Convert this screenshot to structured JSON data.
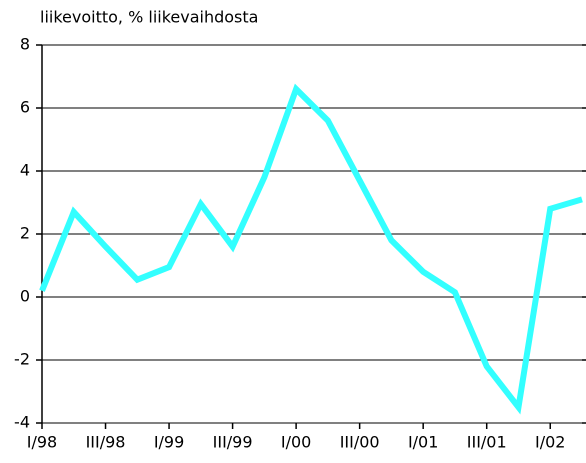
{
  "chart_data": {
    "type": "line",
    "title": "liikevoitto, % liikevaihdosta",
    "categories": [
      "I/98",
      null,
      "III/98",
      null,
      "I/99",
      null,
      "III/99",
      null,
      "I/00",
      null,
      "III/00",
      null,
      "I/01",
      null,
      "III/01",
      null,
      "I/02",
      null
    ],
    "series": [
      {
        "name": "liikevoitto",
        "color": "#33ffff",
        "values": [
          0.2,
          2.7,
          1.6,
          0.55,
          0.95,
          2.95,
          1.6,
          3.8,
          6.6,
          5.6,
          3.7,
          1.8,
          0.8,
          0.15,
          -2.2,
          -3.5,
          2.8,
          3.1
        ]
      }
    ],
    "ylim": [
      -4,
      8
    ],
    "yticks": [
      -4,
      -2,
      0,
      2,
      4,
      6,
      8
    ],
    "grid": true
  }
}
